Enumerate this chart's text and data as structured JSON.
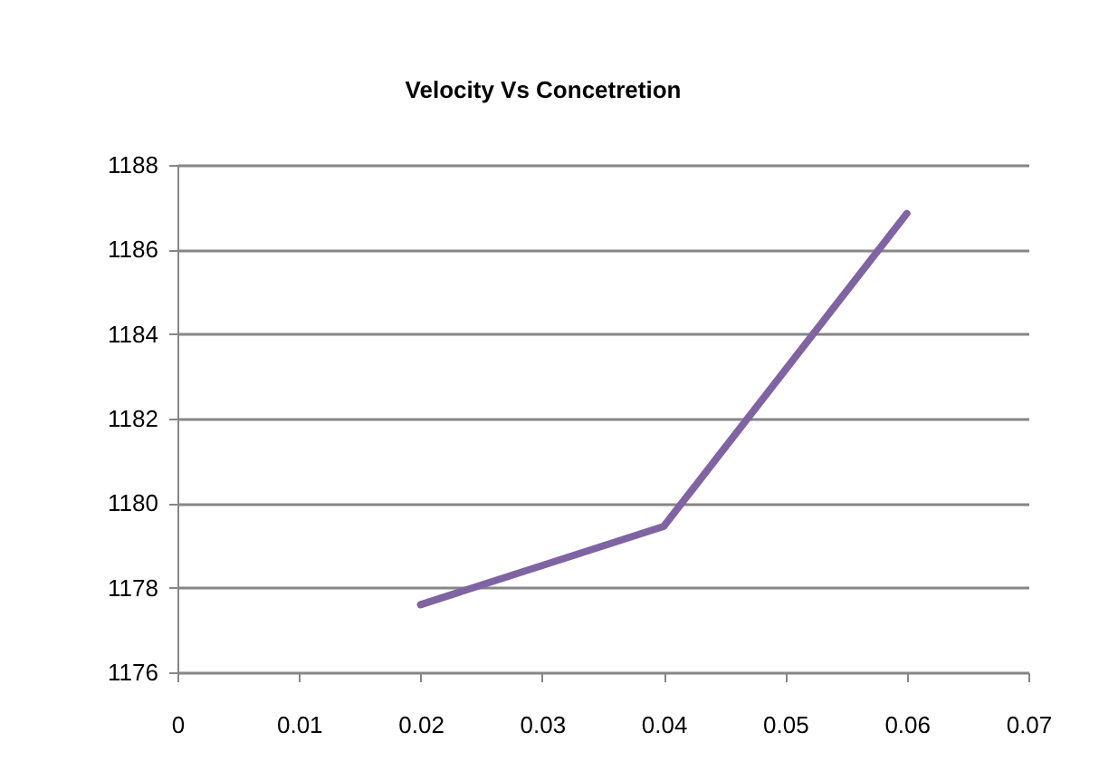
{
  "chart_data": {
    "type": "line",
    "title": "Velocity Vs Concetretion",
    "x": [
      0.02,
      0.04,
      0.06
    ],
    "series": [
      {
        "color": "#8064a2",
        "values": [
          1177.6,
          1179.45,
          1186.85
        ]
      }
    ],
    "xlim": [
      0,
      0.07
    ],
    "xticks": [
      0,
      0.01,
      0.02,
      0.03,
      0.04,
      0.05,
      0.06,
      0.07
    ],
    "ylim": [
      1176,
      1188
    ],
    "yticks": [
      1176,
      1178,
      1180,
      1182,
      1184,
      1186,
      1188
    ],
    "grid": "y",
    "marker": "none",
    "line_style": "solid"
  }
}
